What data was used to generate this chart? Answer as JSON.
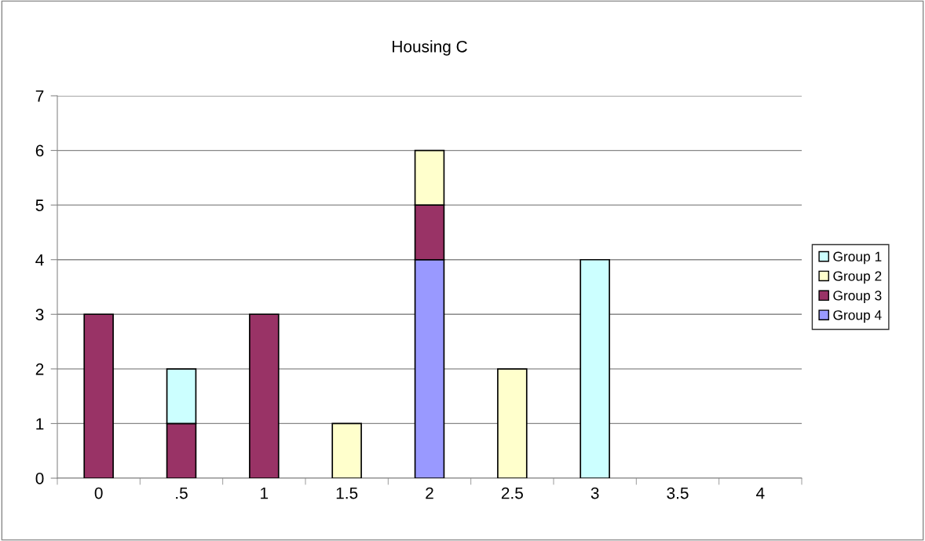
{
  "chart_data": {
    "type": "bar",
    "title": "Housing C",
    "stacked": true,
    "categories": [
      "0",
      ".5",
      "1",
      "1.5",
      "2",
      "2.5",
      "3",
      "3.5",
      "4"
    ],
    "series": [
      {
        "name": "Group 4",
        "color": "#9999ff",
        "values": [
          null,
          null,
          null,
          null,
          4,
          null,
          null,
          null,
          null
        ]
      },
      {
        "name": "Group 3",
        "color": "#993366",
        "values": [
          3,
          1,
          3,
          null,
          1,
          null,
          null,
          null,
          null
        ]
      },
      {
        "name": "Group 2",
        "color": "#ffffcc",
        "values": [
          null,
          null,
          null,
          1,
          1,
          2,
          null,
          null,
          null
        ]
      },
      {
        "name": "Group 1",
        "color": "#ccffff",
        "values": [
          null,
          1,
          null,
          null,
          null,
          null,
          4,
          null,
          null
        ]
      }
    ],
    "ylim": [
      0,
      7
    ],
    "yticks": [
      0,
      1,
      2,
      3,
      4,
      5,
      6,
      7
    ],
    "grid": "y",
    "legend": "right"
  }
}
